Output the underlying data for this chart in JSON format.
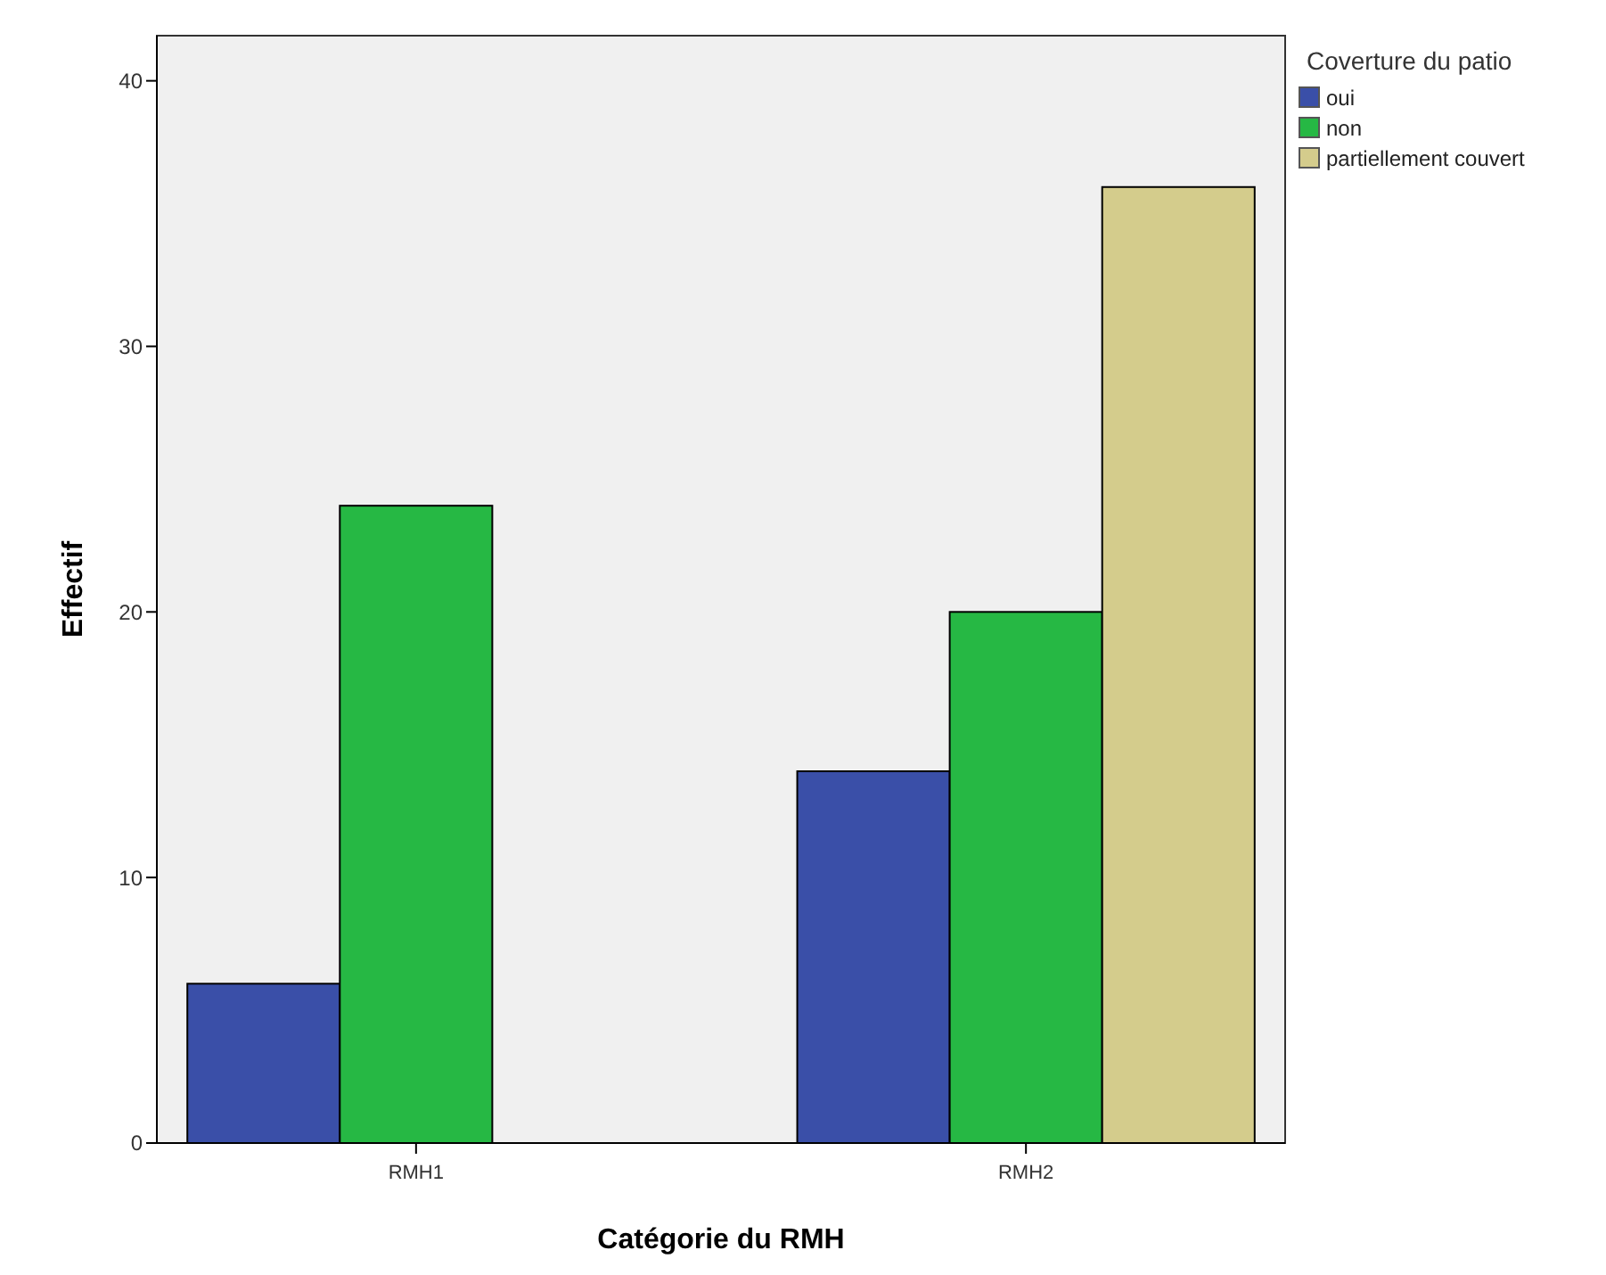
{
  "chart_data": {
    "type": "bar",
    "xlabel": "Catégorie du RMH",
    "ylabel": "Effectif",
    "legend_title": "Coverture du patio",
    "categories": [
      "RMH1",
      "RMH2"
    ],
    "series": [
      {
        "name": "oui",
        "color": "#3a4fa8",
        "values": [
          6,
          14
        ]
      },
      {
        "name": "non",
        "color": "#26b844",
        "values": [
          24,
          20
        ]
      },
      {
        "name": "partiellement couvert",
        "color": "#d4cc8c",
        "values": [
          null,
          36
        ]
      }
    ],
    "ylim": [
      0,
      41.7
    ],
    "yticks": [
      0,
      10,
      20,
      30,
      40
    ],
    "grid": false,
    "legend": "top right"
  }
}
